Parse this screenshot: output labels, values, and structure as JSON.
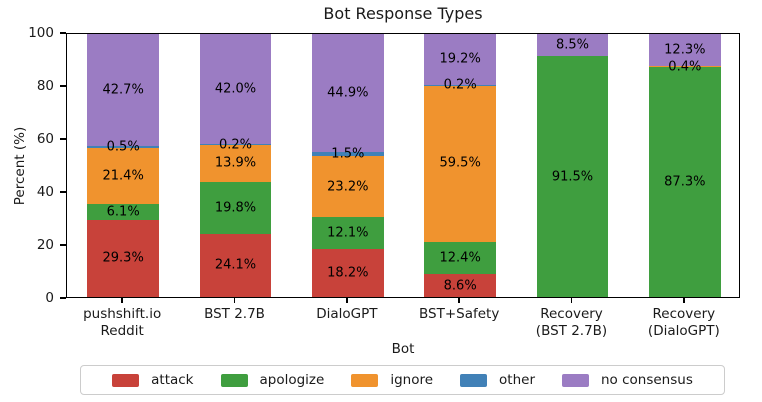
{
  "chart_data": {
    "type": "bar",
    "stacked": true,
    "title": "Bot Response Types",
    "xlabel": "Bot",
    "ylabel": "Percent (%)",
    "ylim": [
      0,
      100
    ],
    "yticks": [
      0,
      20,
      40,
      60,
      80,
      100
    ],
    "grid": false,
    "legend_position": "bottom",
    "bar_labels_format": "percent_one_decimal",
    "categories": [
      "pushshift.io\nReddit",
      "BST 2.7B",
      "DialoGPT",
      "BST+Safety",
      "Recovery\n(BST 2.7B)",
      "Recovery\n(DialoGPT)"
    ],
    "series": [
      {
        "name": "attack",
        "color": "#c8423a",
        "values": [
          29.3,
          24.1,
          18.2,
          8.6,
          0,
          0
        ]
      },
      {
        "name": "apologize",
        "color": "#3f9e3f",
        "values": [
          6.1,
          19.8,
          12.1,
          12.4,
          91.5,
          87.3
        ]
      },
      {
        "name": "ignore",
        "color": "#f0932e",
        "values": [
          21.4,
          13.9,
          23.2,
          59.5,
          0,
          0.4
        ]
      },
      {
        "name": "other",
        "color": "#4181b7",
        "values": [
          0.5,
          0.2,
          1.5,
          0.2,
          0,
          0
        ]
      },
      {
        "name": "no consensus",
        "color": "#9b7cc3",
        "values": [
          42.7,
          42.0,
          44.9,
          19.2,
          8.5,
          12.3
        ]
      }
    ]
  }
}
